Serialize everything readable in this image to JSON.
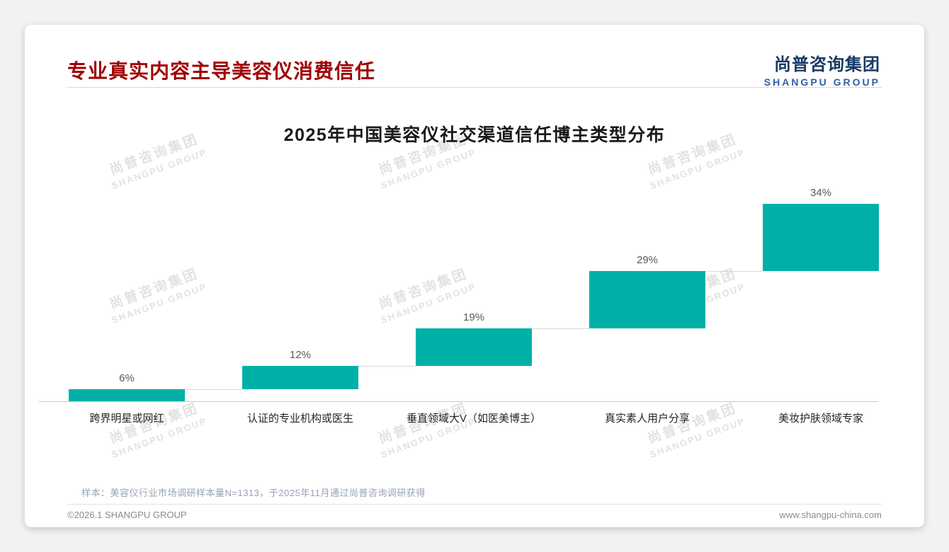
{
  "header": {
    "title": "专业真实内容主导美容仪消费信任",
    "logo_cn": "尚普咨询集团",
    "logo_en": "SHANGPU GROUP"
  },
  "watermark": {
    "cn": "尚普咨询集团",
    "en": "SHANGPU GROUP"
  },
  "chart_data": {
    "type": "bar",
    "subtype": "cumulative-step-waterfall",
    "title": "2025年中国美容仪社交渠道信任博主类型分布",
    "categories": [
      "跨界明星或网红",
      "认证的专业机构或医生",
      "垂直领域大V（如医美博主）",
      "真实素人用户分享",
      "美妆护肤领域专家"
    ],
    "values": [
      6,
      12,
      19,
      29,
      34
    ],
    "labels": [
      "6%",
      "12%",
      "19%",
      "29%",
      "34%"
    ],
    "cumulative": [
      6,
      18,
      37,
      66,
      100
    ],
    "ylim": [
      0,
      100
    ],
    "bar_color": "#00b0a6",
    "grid": "off",
    "legend": "none",
    "value_label_position": "above-bar"
  },
  "footnote": "样本：美容仪行业市场调研样本量N=1313，于2025年11月通过尚普咨询调研获得",
  "footer": {
    "left": "©2026.1 SHANGPU GROUP",
    "right": "www.shangpu-china.com"
  },
  "colors": {
    "title_red": "#a00000",
    "bar_teal": "#00b0a6",
    "logo_navy": "#173a63",
    "logo_blue": "#2e5fa3",
    "axis_gray": "#c9c9c9",
    "footnote_gray": "#96a3b4"
  }
}
